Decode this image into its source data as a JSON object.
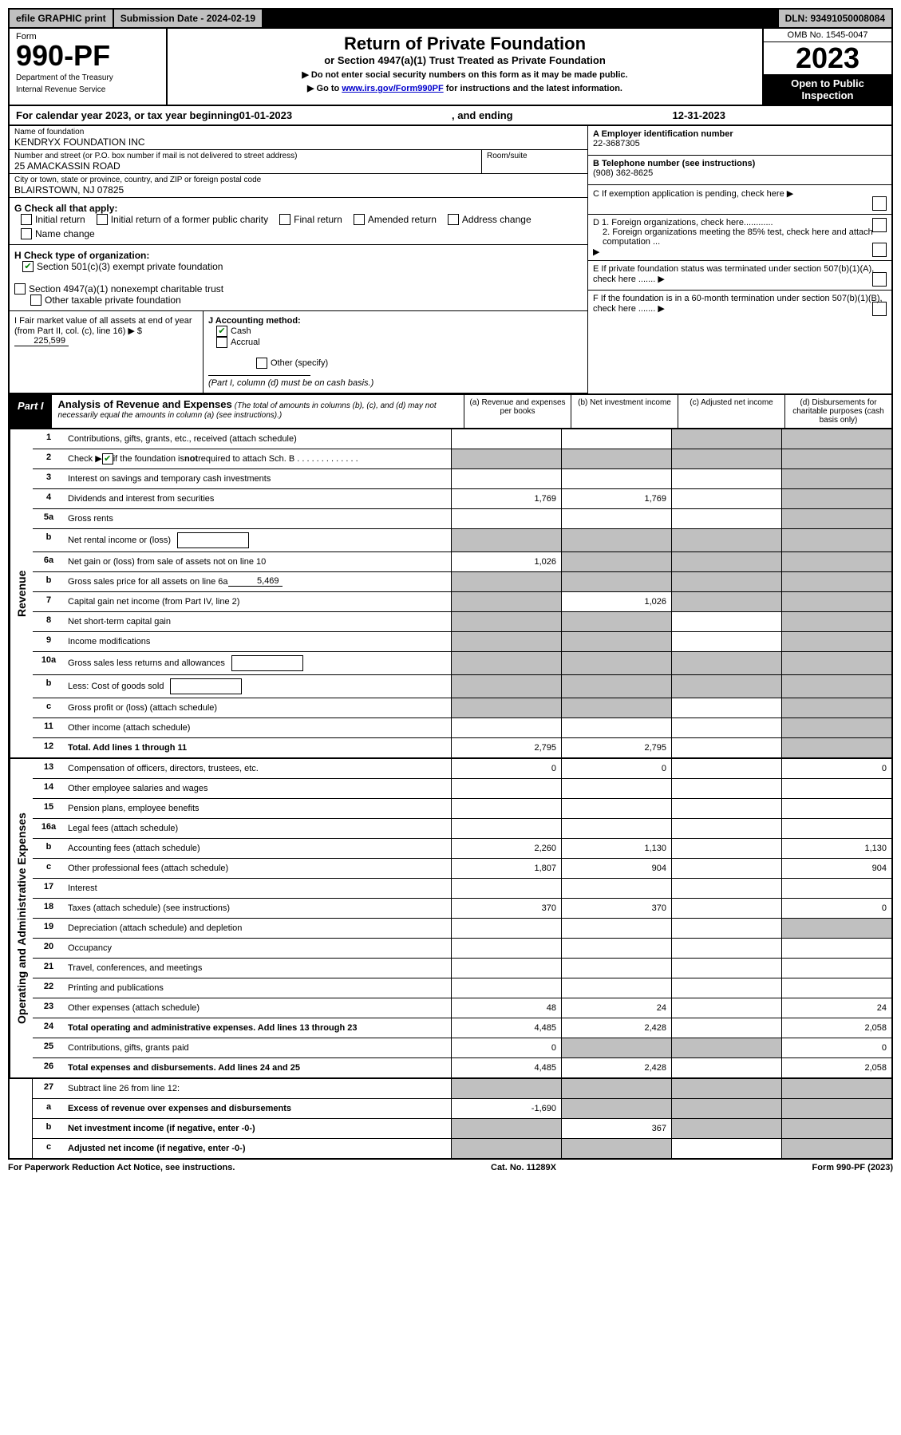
{
  "top_bar": {
    "efile": "efile GRAPHIC print",
    "submission": "Submission Date - 2024-02-19",
    "dln": "DLN: 93491050008084"
  },
  "header": {
    "form_label": "Form",
    "form_number": "990-PF",
    "dept": "Department of the Treasury",
    "irs": "Internal Revenue Service",
    "main_title": "Return of Private Foundation",
    "sub_title": "or Section 4947(a)(1) Trust Treated as Private Foundation",
    "instruct1": "▶ Do not enter social security numbers on this form as it may be made public.",
    "instruct2_prefix": "▶ Go to ",
    "instruct2_link": "www.irs.gov/Form990PF",
    "instruct2_suffix": " for instructions and the latest information.",
    "omb": "OMB No. 1545-0047",
    "year": "2023",
    "open": "Open to Public Inspection"
  },
  "cal_year": {
    "prefix": "For calendar year 2023, or tax year beginning ",
    "begin": "01-01-2023",
    "mid": " , and ending ",
    "end": "12-31-2023"
  },
  "info": {
    "name_label": "Name of foundation",
    "name": "KENDRYX FOUNDATION INC",
    "addr_label": "Number and street (or P.O. box number if mail is not delivered to street address)",
    "addr": "25 AMACKASSIN ROAD",
    "room_label": "Room/suite",
    "city_label": "City or town, state or province, country, and ZIP or foreign postal code",
    "city": "BLAIRSTOWN, NJ  07825",
    "ein_label": "A Employer identification number",
    "ein": "22-3687305",
    "phone_label": "B Telephone number (see instructions)",
    "phone": "(908) 362-8625",
    "c_label": "C If exemption application is pending, check here ▶",
    "d1": "D 1. Foreign organizations, check here............",
    "d2": "2. Foreign organizations meeting the 85% test, check here and attach computation ...",
    "e_label": "E If private foundation status was terminated under section 507(b)(1)(A), check here .......",
    "f_label": "F If the foundation is in a 60-month termination under section 507(b)(1)(B), check here ......."
  },
  "g": {
    "label": "G Check all that apply:",
    "items": [
      "Initial return",
      "Initial return of a former public charity",
      "Final return",
      "Amended return",
      "Address change",
      "Name change"
    ]
  },
  "h": {
    "label": "H Check type of organization:",
    "opt1": "Section 501(c)(3) exempt private foundation",
    "opt2": "Section 4947(a)(1) nonexempt charitable trust",
    "opt3": "Other taxable private foundation"
  },
  "i": {
    "label": "I Fair market value of all assets at end of year (from Part II, col. (c), line 16) ▶ $",
    "value": "225,599"
  },
  "j": {
    "label": "J Accounting method:",
    "cash": "Cash",
    "accrual": "Accrual",
    "other": "Other (specify)",
    "note": "(Part I, column (d) must be on cash basis.)"
  },
  "part1": {
    "label": "Part I",
    "title": "Analysis of Revenue and Expenses",
    "note": "(The total of amounts in columns (b), (c), and (d) may not necessarily equal the amounts in column (a) (see instructions).)",
    "col_a": "(a) Revenue and expenses per books",
    "col_b": "(b) Net investment income",
    "col_c": "(c) Adjusted net income",
    "col_d": "(d) Disbursements for charitable purposes (cash basis only)"
  },
  "vert": {
    "revenue": "Revenue",
    "expenses": "Operating and Administrative Expenses"
  },
  "rows": [
    {
      "n": "1",
      "d": "Contributions, gifts, grants, etc., received (attach schedule)",
      "a": "",
      "b": "",
      "c": "s",
      "ds": "s"
    },
    {
      "n": "2",
      "d": "Check ▶ ☑ if the foundation is not required to attach Sch. B",
      "a": "s",
      "b": "s",
      "c": "s",
      "ds": "s",
      "bold_not": true
    },
    {
      "n": "3",
      "d": "Interest on savings and temporary cash investments",
      "a": "",
      "b": "",
      "c": "",
      "ds": "s"
    },
    {
      "n": "4",
      "d": "Dividends and interest from securities",
      "a": "1,769",
      "b": "1,769",
      "c": "",
      "ds": "s"
    },
    {
      "n": "5a",
      "d": "Gross rents",
      "a": "",
      "b": "",
      "c": "",
      "ds": "s"
    },
    {
      "n": "b",
      "d": "Net rental income or (loss)",
      "a": "s",
      "b": "s",
      "c": "s",
      "ds": "s",
      "inline_box": ""
    },
    {
      "n": "6a",
      "d": "Net gain or (loss) from sale of assets not on line 10",
      "a": "1,026",
      "b": "s",
      "c": "s",
      "ds": "s"
    },
    {
      "n": "b",
      "d": "Gross sales price for all assets on line 6a",
      "a": "s",
      "b": "s",
      "c": "s",
      "ds": "s",
      "inline_val": "5,469"
    },
    {
      "n": "7",
      "d": "Capital gain net income (from Part IV, line 2)",
      "a": "s",
      "b": "1,026",
      "c": "s",
      "ds": "s"
    },
    {
      "n": "8",
      "d": "Net short-term capital gain",
      "a": "s",
      "b": "s",
      "c": "",
      "ds": "s"
    },
    {
      "n": "9",
      "d": "Income modifications",
      "a": "s",
      "b": "s",
      "c": "",
      "ds": "s"
    },
    {
      "n": "10a",
      "d": "Gross sales less returns and allowances",
      "a": "s",
      "b": "s",
      "c": "s",
      "ds": "s",
      "inline_box": ""
    },
    {
      "n": "b",
      "d": "Less: Cost of goods sold",
      "a": "s",
      "b": "s",
      "c": "s",
      "ds": "s",
      "inline_box": ""
    },
    {
      "n": "c",
      "d": "Gross profit or (loss) (attach schedule)",
      "a": "s",
      "b": "s",
      "c": "",
      "ds": "s"
    },
    {
      "n": "11",
      "d": "Other income (attach schedule)",
      "a": "",
      "b": "",
      "c": "",
      "ds": "s"
    },
    {
      "n": "12",
      "d": "Total. Add lines 1 through 11",
      "a": "2,795",
      "b": "2,795",
      "c": "",
      "ds": "s",
      "bold": true
    }
  ],
  "exp_rows": [
    {
      "n": "13",
      "d": "Compensation of officers, directors, trustees, etc.",
      "a": "0",
      "b": "0",
      "c": "",
      "ds": "0"
    },
    {
      "n": "14",
      "d": "Other employee salaries and wages",
      "a": "",
      "b": "",
      "c": "",
      "ds": ""
    },
    {
      "n": "15",
      "d": "Pension plans, employee benefits",
      "a": "",
      "b": "",
      "c": "",
      "ds": ""
    },
    {
      "n": "16a",
      "d": "Legal fees (attach schedule)",
      "a": "",
      "b": "",
      "c": "",
      "ds": ""
    },
    {
      "n": "b",
      "d": "Accounting fees (attach schedule)",
      "a": "2,260",
      "b": "1,130",
      "c": "",
      "ds": "1,130"
    },
    {
      "n": "c",
      "d": "Other professional fees (attach schedule)",
      "a": "1,807",
      "b": "904",
      "c": "",
      "ds": "904"
    },
    {
      "n": "17",
      "d": "Interest",
      "a": "",
      "b": "",
      "c": "",
      "ds": ""
    },
    {
      "n": "18",
      "d": "Taxes (attach schedule) (see instructions)",
      "a": "370",
      "b": "370",
      "c": "",
      "ds": "0"
    },
    {
      "n": "19",
      "d": "Depreciation (attach schedule) and depletion",
      "a": "",
      "b": "",
      "c": "",
      "ds": "s"
    },
    {
      "n": "20",
      "d": "Occupancy",
      "a": "",
      "b": "",
      "c": "",
      "ds": ""
    },
    {
      "n": "21",
      "d": "Travel, conferences, and meetings",
      "a": "",
      "b": "",
      "c": "",
      "ds": ""
    },
    {
      "n": "22",
      "d": "Printing and publications",
      "a": "",
      "b": "",
      "c": "",
      "ds": ""
    },
    {
      "n": "23",
      "d": "Other expenses (attach schedule)",
      "a": "48",
      "b": "24",
      "c": "",
      "ds": "24"
    },
    {
      "n": "24",
      "d": "Total operating and administrative expenses. Add lines 13 through 23",
      "a": "4,485",
      "b": "2,428",
      "c": "",
      "ds": "2,058",
      "bold": true
    },
    {
      "n": "25",
      "d": "Contributions, gifts, grants paid",
      "a": "0",
      "b": "s",
      "c": "s",
      "ds": "0"
    },
    {
      "n": "26",
      "d": "Total expenses and disbursements. Add lines 24 and 25",
      "a": "4,485",
      "b": "2,428",
      "c": "",
      "ds": "2,058",
      "bold": true
    }
  ],
  "net_rows": [
    {
      "n": "27",
      "d": "Subtract line 26 from line 12:",
      "a": "s",
      "b": "s",
      "c": "s",
      "ds": "s"
    },
    {
      "n": "a",
      "d": "Excess of revenue over expenses and disbursements",
      "a": "-1,690",
      "b": "s",
      "c": "s",
      "ds": "s",
      "bold": true
    },
    {
      "n": "b",
      "d": "Net investment income (if negative, enter -0-)",
      "a": "s",
      "b": "367",
      "c": "s",
      "ds": "s",
      "bold": true
    },
    {
      "n": "c",
      "d": "Adjusted net income (if negative, enter -0-)",
      "a": "s",
      "b": "s",
      "c": "",
      "ds": "s",
      "bold": true
    }
  ],
  "footer": {
    "left": "For Paperwork Reduction Act Notice, see instructions.",
    "center": "Cat. No. 11289X",
    "right": "Form 990-PF (2023)"
  }
}
